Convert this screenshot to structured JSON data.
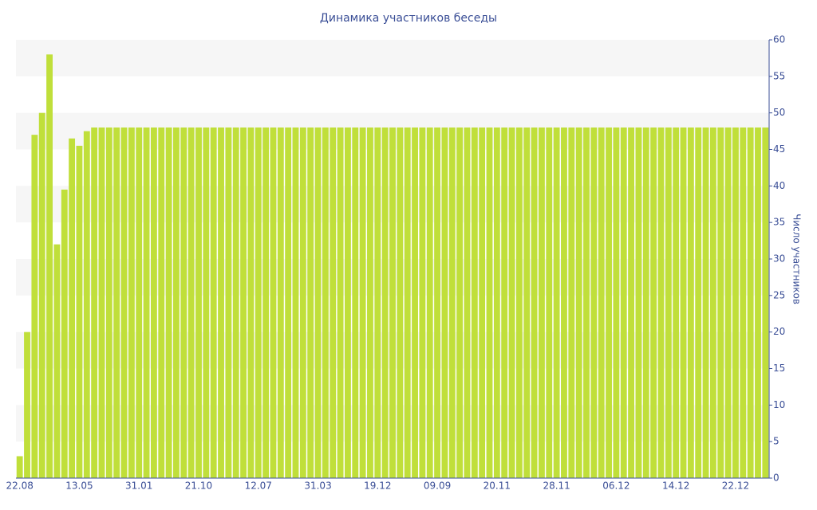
{
  "chart_data": {
    "type": "bar",
    "title": "Динамика участников беседы",
    "y_label": "Число участников",
    "categories": [
      "22.08",
      null,
      null,
      null,
      null,
      null,
      null,
      null,
      "13.05",
      null,
      null,
      null,
      null,
      null,
      null,
      null,
      "31.01",
      null,
      null,
      null,
      null,
      null,
      null,
      null,
      "21.10",
      null,
      null,
      null,
      null,
      null,
      null,
      null,
      "12.07",
      null,
      null,
      null,
      null,
      null,
      null,
      null,
      "31.03",
      null,
      null,
      null,
      null,
      null,
      null,
      null,
      "19.12",
      null,
      null,
      null,
      null,
      null,
      null,
      null,
      "09.09",
      null,
      null,
      null,
      null,
      null,
      null,
      null,
      "20.11",
      null,
      null,
      null,
      null,
      null,
      null,
      null,
      "28.11",
      null,
      null,
      null,
      null,
      null,
      null,
      null,
      "06.12",
      null,
      null,
      null,
      null,
      null,
      null,
      null,
      "14.12",
      null,
      null,
      null,
      null,
      null,
      null,
      null,
      "22.12",
      null,
      null,
      null,
      null
    ],
    "values": [
      3,
      20,
      47,
      50,
      58,
      32,
      39.5,
      46.5,
      45.5,
      47.5,
      48,
      48,
      48,
      48,
      48,
      48,
      48,
      48,
      48,
      48,
      48,
      48,
      48,
      48,
      48,
      48,
      48,
      48,
      48,
      48,
      48,
      48,
      48,
      48,
      48,
      48,
      48,
      48,
      48,
      48,
      48,
      48,
      48,
      48,
      48,
      48,
      48,
      48,
      48,
      48,
      48,
      48,
      48,
      48,
      48,
      48,
      48,
      48,
      48,
      48,
      48,
      48,
      48,
      48,
      48,
      48,
      48,
      48,
      48,
      48,
      48,
      48,
      48,
      48,
      48,
      48,
      48,
      48,
      48,
      48,
      48,
      48,
      48,
      48,
      48,
      48,
      48,
      48,
      48,
      48,
      48,
      48,
      48,
      48,
      48,
      48,
      48,
      48,
      48,
      48,
      48
    ],
    "color": "#c0df3a",
    "ylim": [
      0,
      60
    ],
    "yticks": [
      0,
      5,
      10,
      15,
      20,
      25,
      30,
      35,
      40,
      45,
      50,
      55,
      60
    ],
    "grid": true,
    "y_axis_side": "right"
  }
}
